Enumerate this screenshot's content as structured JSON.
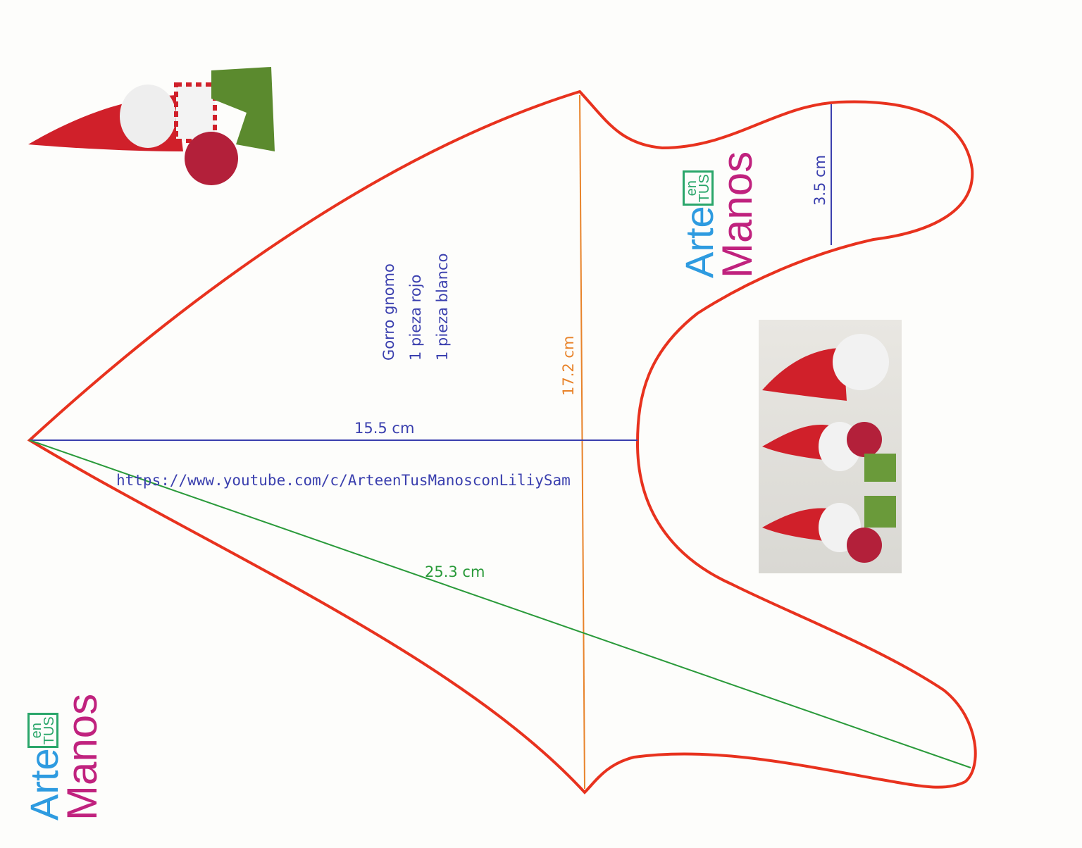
{
  "pattern": {
    "title": "Gorro gnomo",
    "line1": "1 pieza rojo",
    "line2": "1 pieza blanco",
    "url": "https://www.youtube.com/c/ArteenTusManosconLiliySam"
  },
  "measurements": {
    "width": "15.5 cm",
    "height": "17.2 cm",
    "diagonal": "25.3 cm",
    "lobe": "3.5 cm"
  },
  "logo": {
    "arte": "Arte",
    "en": "en",
    "tus": "TUS",
    "manos": "Manos"
  },
  "colors": {
    "outline": "#e8321e",
    "blue": "#3a3fae",
    "orange": "#e8832a",
    "green": "#2a9a3a"
  }
}
